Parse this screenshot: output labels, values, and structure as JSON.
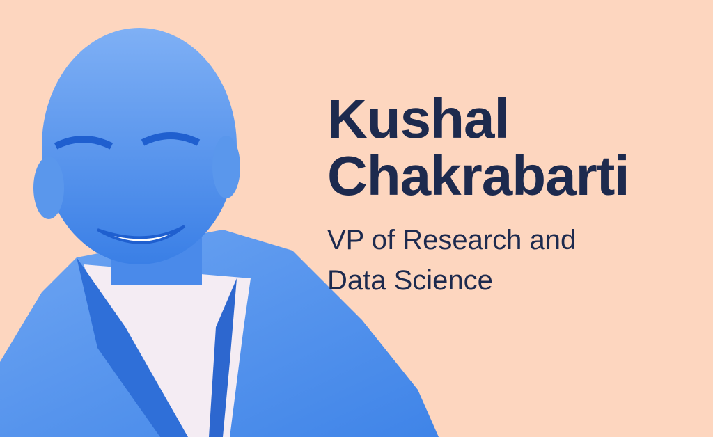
{
  "profile": {
    "name_lines": [
      "Kushal",
      "Chakrabarti"
    ],
    "role_lines": [
      "VP of Research and",
      "Data Science"
    ]
  }
}
